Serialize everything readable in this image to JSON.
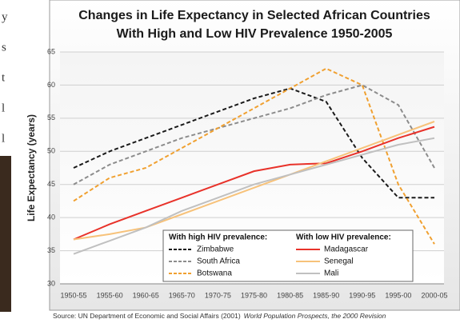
{
  "left_fragments": [
    "y",
    "s",
    "t",
    "l",
    "l"
  ],
  "chart_data": {
    "type": "line",
    "title": [
      "Changes in Life Expectancy in Selected African Countries",
      "With High and Low HIV Prevalence 1950-2005"
    ],
    "y_label": "Life Expectancy (years)",
    "categories": [
      "1950-55",
      "1955-60",
      "1960-65",
      "1965-70",
      "1970-75",
      "1975-80",
      "1980-85",
      "1985-90",
      "1990-95",
      "1995-00",
      "2000-05"
    ],
    "ylim": [
      30,
      65
    ],
    "yticks": [
      30,
      35,
      40,
      45,
      50,
      55,
      60,
      65
    ],
    "grid": true,
    "legend_groups": [
      "With high HIV prevalence:",
      "With low HIV prevalence:"
    ],
    "series": [
      {
        "name": "Zimbabwe",
        "color": "#1a1a1a",
        "dashed": true,
        "group": 0,
        "values": [
          47.5,
          50,
          52,
          54,
          56,
          58,
          59.5,
          57.5,
          49,
          43,
          43
        ]
      },
      {
        "name": "South Africa",
        "color": "#8c8c8c",
        "dashed": true,
        "group": 0,
        "values": [
          45,
          48,
          50,
          52,
          53.5,
          55,
          56.5,
          58.5,
          60,
          57,
          47.5
        ]
      },
      {
        "name": "Botswana",
        "color": "#f0a030",
        "dashed": true,
        "group": 0,
        "values": [
          42.5,
          46,
          47.5,
          50.5,
          53.5,
          56.5,
          59.5,
          62.5,
          60,
          45,
          36
        ]
      },
      {
        "name": "Madagascar",
        "color": "#e8322a",
        "dashed": false,
        "group": 1,
        "values": [
          36.7,
          39,
          41,
          43,
          45,
          47,
          48,
          48.2,
          50,
          52,
          53.7
        ]
      },
      {
        "name": "Senegal",
        "color": "#f7c27a",
        "dashed": false,
        "group": 1,
        "values": [
          36.7,
          37.5,
          38.5,
          40.5,
          42.5,
          44.5,
          46.5,
          48.5,
          50.5,
          52.5,
          54.5
        ]
      },
      {
        "name": "Mali",
        "color": "#c0c0c0",
        "dashed": false,
        "group": 1,
        "values": [
          34.5,
          36.5,
          38.5,
          41,
          43,
          45,
          46.5,
          48,
          49.5,
          51,
          52
        ]
      }
    ],
    "source": "Source: UN Department of Economic and Social Affairs (2001)",
    "source_title": "World Population Prospects, the 2000 Revision"
  }
}
